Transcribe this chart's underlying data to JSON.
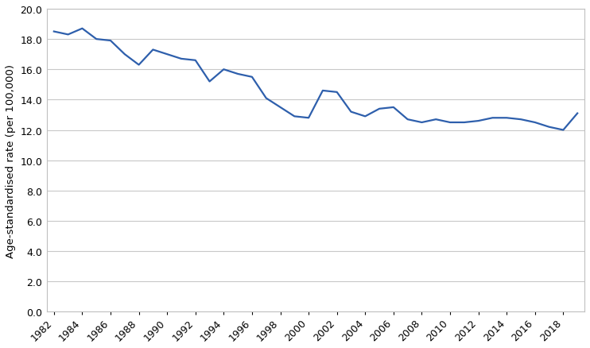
{
  "years": [
    1982,
    1983,
    1984,
    1985,
    1986,
    1987,
    1988,
    1989,
    1990,
    1991,
    1992,
    1993,
    1994,
    1995,
    1996,
    1997,
    1998,
    1999,
    2000,
    2001,
    2002,
    2003,
    2004,
    2005,
    2006,
    2007,
    2008,
    2009,
    2010,
    2011,
    2012,
    2013,
    2014,
    2015,
    2016,
    2017,
    2018,
    2019
  ],
  "values": [
    18.5,
    18.3,
    18.7,
    18.0,
    17.9,
    17.0,
    16.3,
    17.3,
    17.0,
    16.7,
    16.6,
    15.2,
    16.0,
    15.7,
    15.5,
    14.1,
    13.5,
    12.9,
    12.8,
    14.6,
    14.5,
    13.2,
    12.9,
    13.4,
    13.5,
    12.7,
    12.5,
    12.7,
    12.5,
    12.5,
    12.6,
    12.8,
    12.8,
    12.7,
    12.5,
    12.2,
    12.0,
    13.1
  ],
  "line_color": "#2E5FAC",
  "ylabel": "Age-standardised rate (per 100,000)",
  "ylim": [
    0,
    20.0
  ],
  "yticks": [
    0.0,
    2.0,
    4.0,
    6.0,
    8.0,
    10.0,
    12.0,
    14.0,
    16.0,
    18.0,
    20.0
  ],
  "xtick_years": [
    1982,
    1984,
    1986,
    1988,
    1990,
    1992,
    1994,
    1996,
    1998,
    2000,
    2002,
    2004,
    2006,
    2008,
    2010,
    2012,
    2014,
    2016,
    2018
  ],
  "background_color": "#ffffff",
  "grid_color": "#c8c8c8",
  "line_width": 1.6,
  "font_family": "DejaVu Sans",
  "tick_fontsize": 9.0,
  "ylabel_fontsize": 9.5,
  "spine_color": "#c0c0c0"
}
